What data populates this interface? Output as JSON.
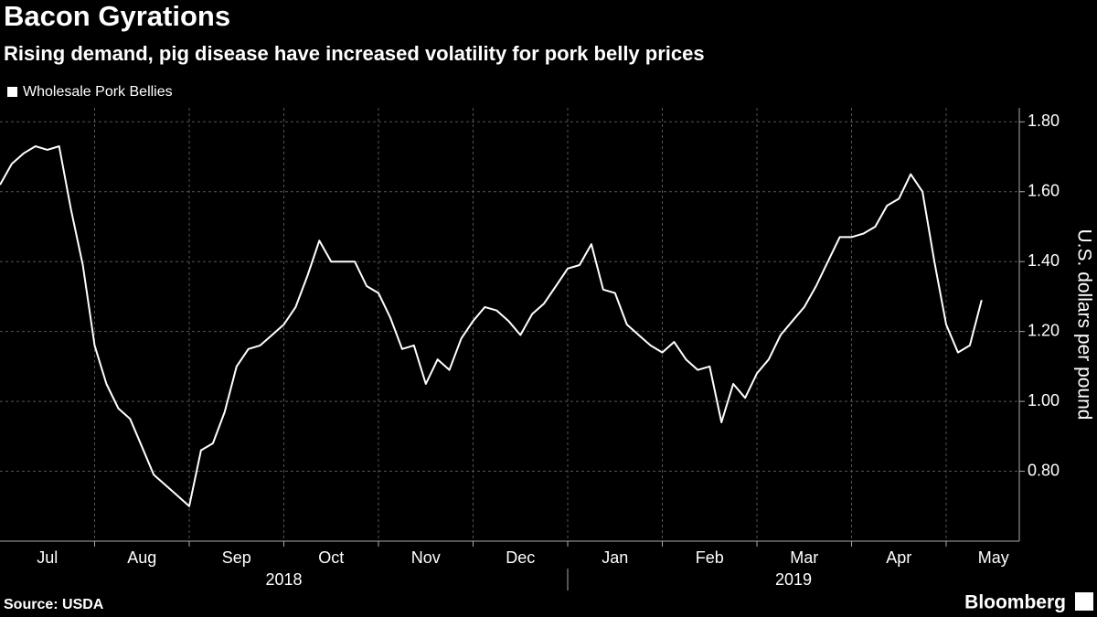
{
  "chart_data": {
    "type": "line",
    "title": "Bacon Gyrations",
    "subtitle": "Rising demand, pig disease have increased volatility for pork belly prices",
    "y_label": "U.S. dollars per pound",
    "source": "Source: USDA",
    "brand": "Bloomberg",
    "x": [
      "2018-07",
      "2018-07",
      "2018-07",
      "2018-07",
      "2018-07",
      "2018-07",
      "2018-07",
      "2018-07",
      "2018-08",
      "2018-08",
      "2018-08",
      "2018-08",
      "2018-08",
      "2018-08",
      "2018-08",
      "2018-08",
      "2018-09",
      "2018-09",
      "2018-09",
      "2018-09",
      "2018-09",
      "2018-09",
      "2018-09",
      "2018-09",
      "2018-10",
      "2018-10",
      "2018-10",
      "2018-10",
      "2018-10",
      "2018-10",
      "2018-10",
      "2018-10",
      "2018-11",
      "2018-11",
      "2018-11",
      "2018-11",
      "2018-11",
      "2018-11",
      "2018-11",
      "2018-11",
      "2018-12",
      "2018-12",
      "2018-12",
      "2018-12",
      "2018-12",
      "2018-12",
      "2018-12",
      "2018-12",
      "2019-01",
      "2019-01",
      "2019-01",
      "2019-01",
      "2019-01",
      "2019-01",
      "2019-01",
      "2019-01",
      "2019-02",
      "2019-02",
      "2019-02",
      "2019-02",
      "2019-02",
      "2019-02",
      "2019-02",
      "2019-02",
      "2019-03",
      "2019-03",
      "2019-03",
      "2019-03",
      "2019-03",
      "2019-03",
      "2019-03",
      "2019-03",
      "2019-04",
      "2019-04",
      "2019-04",
      "2019-04",
      "2019-04",
      "2019-04",
      "2019-04",
      "2019-04",
      "2019-05",
      "2019-05",
      "2019-05",
      "2019-05"
    ],
    "series": [
      {
        "name": "Wholesale Pork Bellies",
        "color": "#ffffff",
        "values": [
          1.62,
          1.68,
          1.71,
          1.73,
          1.72,
          1.73,
          1.55,
          1.39,
          1.16,
          1.05,
          0.98,
          0.95,
          0.87,
          0.79,
          0.76,
          0.73,
          0.7,
          0.86,
          0.88,
          0.97,
          1.1,
          1.15,
          1.16,
          1.19,
          1.22,
          1.27,
          1.36,
          1.46,
          1.4,
          1.4,
          1.4,
          1.33,
          1.31,
          1.24,
          1.15,
          1.16,
          1.05,
          1.12,
          1.09,
          1.18,
          1.23,
          1.27,
          1.26,
          1.23,
          1.19,
          1.25,
          1.28,
          1.33,
          1.38,
          1.39,
          1.45,
          1.32,
          1.31,
          1.22,
          1.19,
          1.16,
          1.14,
          1.17,
          1.12,
          1.09,
          1.1,
          0.94,
          1.05,
          1.01,
          1.08,
          1.12,
          1.19,
          1.23,
          1.27,
          1.33,
          1.4,
          1.47,
          1.47,
          1.48,
          1.5,
          1.56,
          1.58,
          1.65,
          1.6,
          1.4,
          1.22,
          1.14,
          1.16,
          1.29
        ]
      }
    ],
    "xticks": [
      {
        "value": "2018-07",
        "label": "Jul"
      },
      {
        "value": "2018-08",
        "label": "Aug"
      },
      {
        "value": "2018-09",
        "label": "Sep"
      },
      {
        "value": "2018-10",
        "label": "Oct"
      },
      {
        "value": "2018-11",
        "label": "Nov"
      },
      {
        "value": "2018-12",
        "label": "Dec"
      },
      {
        "value": "2019-01",
        "label": "Jan"
      },
      {
        "value": "2019-02",
        "label": "Feb"
      },
      {
        "value": "2019-03",
        "label": "Mar"
      },
      {
        "value": "2019-04",
        "label": "Apr"
      },
      {
        "value": "2019-05",
        "label": "May"
      }
    ],
    "year_labels": [
      "2018",
      "2019"
    ],
    "ylim": [
      0.6,
      1.84
    ],
    "yticks": [
      {
        "value": 0.8,
        "label": "0.80"
      },
      {
        "value": 1.0,
        "label": "1.00"
      },
      {
        "value": 1.2,
        "label": "1.20"
      },
      {
        "value": 1.4,
        "label": "1.40"
      },
      {
        "value": 1.6,
        "label": "1.60"
      },
      {
        "value": 1.8,
        "label": "1.80"
      }
    ],
    "grid": true
  }
}
